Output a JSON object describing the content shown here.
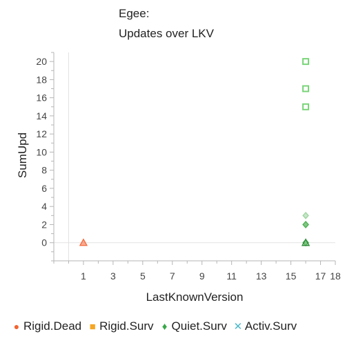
{
  "chart_data": {
    "type": "scatter",
    "title": "Egee:",
    "subtitle": "Updates over LKV",
    "xlabel": "LastKnownVersion",
    "ylabel": "SumUpd",
    "xlim": [
      -1,
      18
    ],
    "ylim": [
      -2,
      21
    ],
    "x_ticks": [
      1,
      3,
      5,
      7,
      9,
      11,
      13,
      15,
      17,
      18
    ],
    "y_ticks": [
      0,
      2,
      4,
      6,
      8,
      10,
      12,
      14,
      16,
      18,
      20
    ],
    "grid": false,
    "legend_position": "bottom",
    "series": [
      {
        "name": "Rigid.Dead",
        "marker": "triangle",
        "color": "#f4683a",
        "points": [
          [
            1,
            0
          ]
        ]
      },
      {
        "name": "Rigid.Surv",
        "marker": "square",
        "color": "#78d478",
        "points": [
          [
            16,
            20
          ],
          [
            16,
            17
          ],
          [
            16,
            15
          ]
        ]
      },
      {
        "name": "Quiet.Surv",
        "marker": "diamond",
        "color": "#4caf50",
        "points": [
          [
            16,
            3
          ],
          [
            16,
            2
          ],
          [
            16,
            0
          ]
        ]
      },
      {
        "name": "Activ.Surv",
        "marker": "cross",
        "color": "#4bb8c8",
        "points": []
      }
    ]
  },
  "legend": [
    {
      "label": "Rigid.Dead",
      "symbol": "●",
      "color": "#f26430"
    },
    {
      "label": "Rigid.Surv",
      "symbol": "■",
      "color": "#f5a623"
    },
    {
      "label": "Quiet.Surv",
      "symbol": "♦",
      "color": "#3aa84a"
    },
    {
      "label": "Activ.Surv",
      "symbol": "✕",
      "color": "#4bb8c8"
    }
  ]
}
